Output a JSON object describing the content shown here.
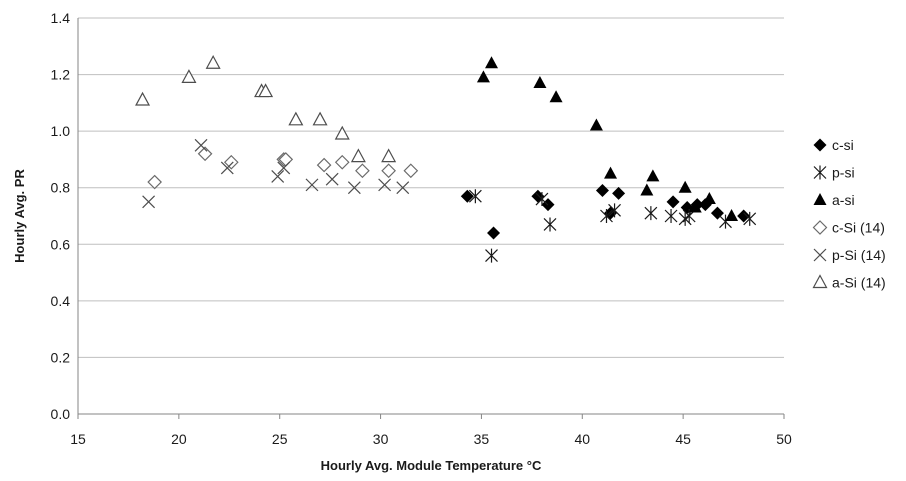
{
  "chart_data": {
    "type": "scatter",
    "xlabel": "Hourly Avg. Module Temperature °C",
    "ylabel": "Hourly Avg. PR",
    "xlim": [
      15,
      50
    ],
    "ylim": [
      0,
      1.4
    ],
    "x_ticks": [
      "15",
      "20",
      "25",
      "30",
      "35",
      "40",
      "45",
      "50"
    ],
    "y_ticks": [
      "0.0",
      "0.2",
      "0.4",
      "0.6",
      "0.8",
      "1.0",
      "1.2",
      "1.4"
    ],
    "grid": "horizontal",
    "legend_position": "right",
    "series": [
      {
        "name": "c-si",
        "marker": "diamond-filled",
        "points": [
          [
            34.3,
            0.77
          ],
          [
            35.6,
            0.64
          ],
          [
            37.8,
            0.77
          ],
          [
            38.3,
            0.74
          ],
          [
            41.0,
            0.79
          ],
          [
            41.4,
            0.71
          ],
          [
            41.8,
            0.78
          ],
          [
            44.5,
            0.75
          ],
          [
            45.2,
            0.73
          ],
          [
            45.7,
            0.74
          ],
          [
            46.1,
            0.74
          ],
          [
            46.7,
            0.71
          ],
          [
            48.0,
            0.7
          ]
        ]
      },
      {
        "name": "p-si",
        "marker": "asterisk",
        "points": [
          [
            34.7,
            0.77
          ],
          [
            35.5,
            0.56
          ],
          [
            38.0,
            0.76
          ],
          [
            38.4,
            0.67
          ],
          [
            41.2,
            0.7
          ],
          [
            41.6,
            0.72
          ],
          [
            43.4,
            0.71
          ],
          [
            44.4,
            0.7
          ],
          [
            45.1,
            0.69
          ],
          [
            45.3,
            0.7
          ],
          [
            47.1,
            0.68
          ],
          [
            48.3,
            0.69
          ]
        ]
      },
      {
        "name": "a-si",
        "marker": "triangle-filled",
        "points": [
          [
            35.1,
            1.19
          ],
          [
            35.5,
            1.24
          ],
          [
            37.9,
            1.17
          ],
          [
            38.7,
            1.12
          ],
          [
            40.7,
            1.02
          ],
          [
            41.4,
            0.85
          ],
          [
            43.2,
            0.79
          ],
          [
            43.5,
            0.84
          ],
          [
            45.1,
            0.8
          ],
          [
            45.6,
            0.73
          ],
          [
            46.3,
            0.76
          ],
          [
            47.4,
            0.7
          ]
        ]
      },
      {
        "name": "c-Si (14)",
        "marker": "diamond-open",
        "points": [
          [
            18.8,
            0.82
          ],
          [
            21.3,
            0.92
          ],
          [
            22.6,
            0.89
          ],
          [
            25.2,
            0.9
          ],
          [
            25.3,
            0.9
          ],
          [
            27.2,
            0.88
          ],
          [
            28.1,
            0.89
          ],
          [
            29.1,
            0.86
          ],
          [
            30.4,
            0.86
          ],
          [
            31.5,
            0.86
          ]
        ]
      },
      {
        "name": "p-Si (14)",
        "marker": "x",
        "points": [
          [
            18.5,
            0.75
          ],
          [
            21.1,
            0.95
          ],
          [
            22.4,
            0.87
          ],
          [
            24.9,
            0.84
          ],
          [
            25.2,
            0.87
          ],
          [
            26.6,
            0.81
          ],
          [
            27.6,
            0.83
          ],
          [
            28.7,
            0.8
          ],
          [
            30.2,
            0.81
          ],
          [
            31.1,
            0.8
          ]
        ]
      },
      {
        "name": "a-Si (14)",
        "marker": "triangle-open",
        "points": [
          [
            18.2,
            1.11
          ],
          [
            20.5,
            1.19
          ],
          [
            21.7,
            1.24
          ],
          [
            24.1,
            1.14
          ],
          [
            24.3,
            1.14
          ],
          [
            25.8,
            1.04
          ],
          [
            27.0,
            1.04
          ],
          [
            28.1,
            0.99
          ],
          [
            28.9,
            0.91
          ],
          [
            30.4,
            0.91
          ]
        ]
      }
    ]
  }
}
